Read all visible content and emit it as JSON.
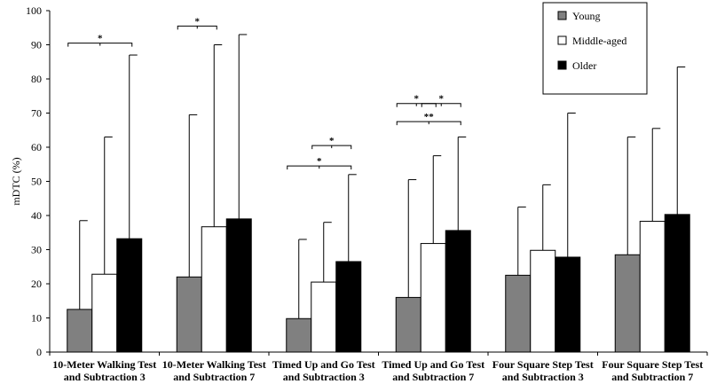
{
  "chart_data": {
    "type": "bar",
    "ylabel": "mDTC (%)",
    "ylim": [
      0,
      100
    ],
    "yticks": [
      0,
      10,
      20,
      30,
      40,
      50,
      60,
      70,
      80,
      90,
      100
    ],
    "grid": false,
    "legend_position": "top-right",
    "categories": [
      [
        "10-Meter Walking Test",
        "and Subtraction 3"
      ],
      [
        "10-Meter Walking Test",
        "and Subtraction 7"
      ],
      [
        "Timed Up and Go Test",
        "and Subtraction 3"
      ],
      [
        "Timed Up and Go Test",
        "and Subtraction 7"
      ],
      [
        "Four Square Step Test",
        "and Subtraction 3"
      ],
      [
        "Four Square Step Test",
        "and Subtraction 7"
      ]
    ],
    "series": [
      {
        "name": "Young",
        "color": "#808080",
        "values": [
          12.5,
          22.0,
          9.8,
          16.0,
          22.5,
          28.5
        ],
        "error_upper": [
          38.5,
          69.5,
          33.0,
          50.5,
          42.5,
          63.0
        ]
      },
      {
        "name": "Middle-aged",
        "color": "#ffffff",
        "values": [
          22.8,
          36.7,
          20.5,
          31.8,
          29.8,
          38.3
        ],
        "error_upper": [
          63.0,
          90.0,
          38.0,
          57.5,
          49.0,
          65.5
        ]
      },
      {
        "name": "Older",
        "color": "#000000",
        "values": [
          33.2,
          39.0,
          26.5,
          35.6,
          27.8,
          40.3
        ],
        "error_upper": [
          87.0,
          93.0,
          52.0,
          63.0,
          70.0,
          83.5
        ]
      }
    ],
    "significance": [
      {
        "group": 0,
        "from": 0,
        "to": 2,
        "level": 90.5,
        "label": "*"
      },
      {
        "group": 1,
        "from": 0,
        "to": 1,
        "level": 95.5,
        "label": "*"
      },
      {
        "group": 2,
        "from": 0,
        "to": 2,
        "level": 54.5,
        "label": "*"
      },
      {
        "group": 2,
        "from": 1,
        "to": 2,
        "level": 60.5,
        "label": "*"
      },
      {
        "group": 3,
        "from": 0,
        "to": 1,
        "level": 72.8,
        "label": "*"
      },
      {
        "group": 3,
        "from": 1,
        "to": 2,
        "level": 72.8,
        "label": "*"
      },
      {
        "group": 3,
        "from": 0,
        "to": 2,
        "level": 67.5,
        "label": "**"
      }
    ]
  }
}
